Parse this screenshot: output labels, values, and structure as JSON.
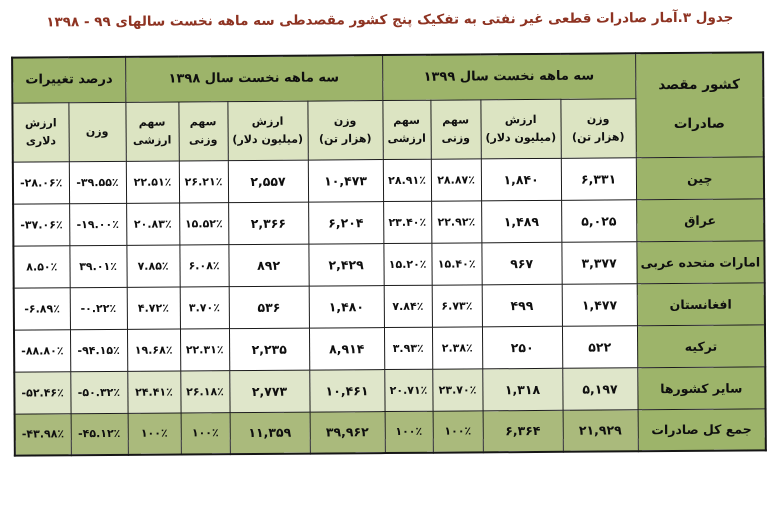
{
  "title": "جدول ۳.آمار صادرات قطعی غیر نفتی به تفکیک پنج کشور مقصدطی سه ماهه نخست سالهای ۹۹ - ۱۳۹۸",
  "colors": {
    "title_text": "#8e3322",
    "header_green": "#9db46a",
    "subheader_green": "#dce4c2",
    "highlight_row_green": "#dfe6ca",
    "total_row_green": "#aaba7c",
    "border": "#1b1b1b"
  },
  "table": {
    "corner_header": "کشور مقصد\nصادرات",
    "groups": [
      {
        "label": "سه ماهه نخست سال ۱۳۹۹",
        "colspan": 4
      },
      {
        "label": "سه ماهه نخست سال ۱۳۹۸",
        "colspan": 4
      },
      {
        "label": "درصد تغییرات",
        "colspan": 2
      }
    ],
    "sub_headers": [
      "وزن\n(هزار تن)",
      "ارزش\n(میلیون دلار)",
      "سهم وزنی",
      "سهم\nارزشی",
      "وزن\n(هزار تن)",
      "ارزش\n(میلیون دلار)",
      "سهم وزنی",
      "سهم\nارزشی",
      "وزن",
      "ارزش دلاری"
    ],
    "rows": [
      {
        "country": "چین",
        "kind": "plain",
        "values": [
          "۶,۳۳۱",
          "۱,۸۴۰",
          "۲۸.۸۷٪",
          "۲۸.۹۱٪",
          "۱۰,۴۷۳",
          "۲,۵۵۷",
          "۲۶.۲۱٪",
          "۲۲.۵۱٪",
          "-۳۹.۵۵٪",
          "-۲۸.۰۶٪"
        ]
      },
      {
        "country": "عراق",
        "kind": "plain",
        "values": [
          "۵,۰۲۵",
          "۱,۴۸۹",
          "۲۲.۹۲٪",
          "۲۳.۴۰٪",
          "۶,۲۰۴",
          "۲,۳۶۶",
          "۱۵.۵۲٪",
          "۲۰.۸۳٪",
          "-۱۹.۰۰٪",
          "-۳۷.۰۶٪"
        ]
      },
      {
        "country": "امارات متحده عربی",
        "kind": "plain",
        "values": [
          "۳,۳۷۷",
          "۹۶۷",
          "۱۵.۴۰٪",
          "۱۵.۲۰٪",
          "۲,۴۲۹",
          "۸۹۲",
          "۶.۰۸٪",
          "۷.۸۵٪",
          "۳۹.۰۱٪",
          "۸.۵۰٪"
        ]
      },
      {
        "country": "افغانستان",
        "kind": "plain",
        "values": [
          "۱,۴۷۷",
          "۴۹۹",
          "۶.۷۳٪",
          "۷.۸۴٪",
          "۱,۴۸۰",
          "۵۳۶",
          "۳.۷۰٪",
          "۴.۷۲٪",
          "-۰.۲۲٪",
          "-۶.۸۹٪"
        ]
      },
      {
        "country": "ترکیه",
        "kind": "plain",
        "values": [
          "۵۲۲",
          "۲۵۰",
          "۲.۳۸٪",
          "۳.۹۳٪",
          "۸,۹۱۴",
          "۲,۲۳۵",
          "۲۲.۳۱٪",
          "۱۹.۶۸٪",
          "-۹۴.۱۵٪",
          "-۸۸.۸۰٪"
        ]
      },
      {
        "country": "سایر کشورها",
        "kind": "light",
        "values": [
          "۵,۱۹۷",
          "۱,۳۱۸",
          "۲۳.۷۰٪",
          "۲۰.۷۱٪",
          "۱۰,۴۶۱",
          "۲,۷۷۳",
          "۲۶.۱۸٪",
          "۲۴.۴۱٪",
          "-۵۰.۳۲٪",
          "-۵۲.۴۶٪"
        ]
      },
      {
        "country": "جمع کل صادرات",
        "kind": "total",
        "values": [
          "۲۱,۹۲۹",
          "۶,۳۶۴",
          "۱۰۰٪",
          "۱۰۰٪",
          "۳۹,۹۶۲",
          "۱۱,۳۵۹",
          "۱۰۰٪",
          "۱۰۰٪",
          "-۴۵.۱۲٪",
          "-۴۳.۹۸٪"
        ]
      }
    ]
  }
}
